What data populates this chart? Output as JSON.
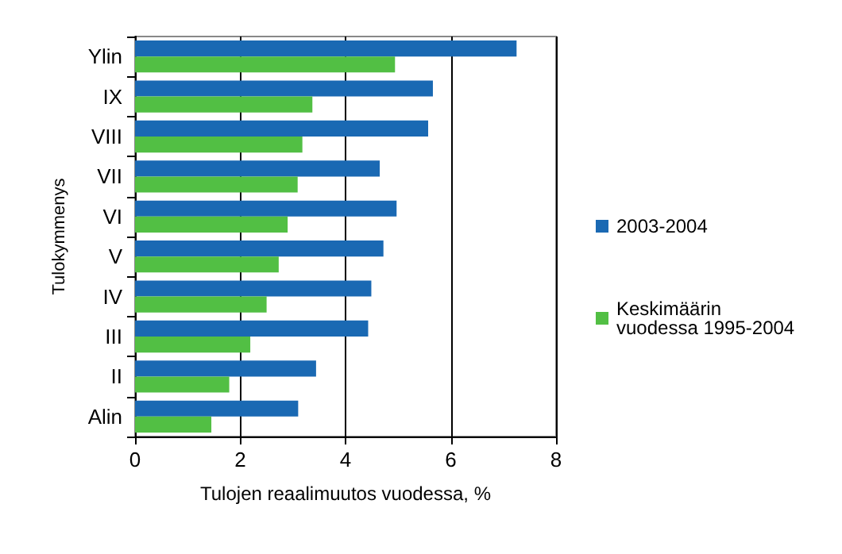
{
  "chart_data": {
    "type": "bar",
    "orientation": "horizontal",
    "xlabel": "Tulojen reaalimuutos vuodessa, %",
    "ylabel": "Tulokymmenys",
    "categories": [
      "Ylin",
      "IX",
      "VIII",
      "VII",
      "VI",
      "V",
      "IV",
      "III",
      "II",
      "Alin"
    ],
    "series": [
      {
        "name": "2003-2004",
        "color": "#1a69b3",
        "values": [
          7.25,
          5.66,
          5.57,
          4.65,
          4.97,
          4.72,
          4.49,
          4.43,
          3.44,
          3.1
        ]
      },
      {
        "name": "Keskimäärin vuodessa 1995-2004",
        "color": "#52bf44",
        "values": [
          4.94,
          3.37,
          3.18,
          3.09,
          2.9,
          2.73,
          2.5,
          2.19,
          1.79,
          1.45
        ]
      }
    ],
    "xlim": [
      0,
      8
    ],
    "xticks": [
      0,
      2,
      4,
      6,
      8
    ],
    "grid": "x",
    "legend": "right"
  }
}
